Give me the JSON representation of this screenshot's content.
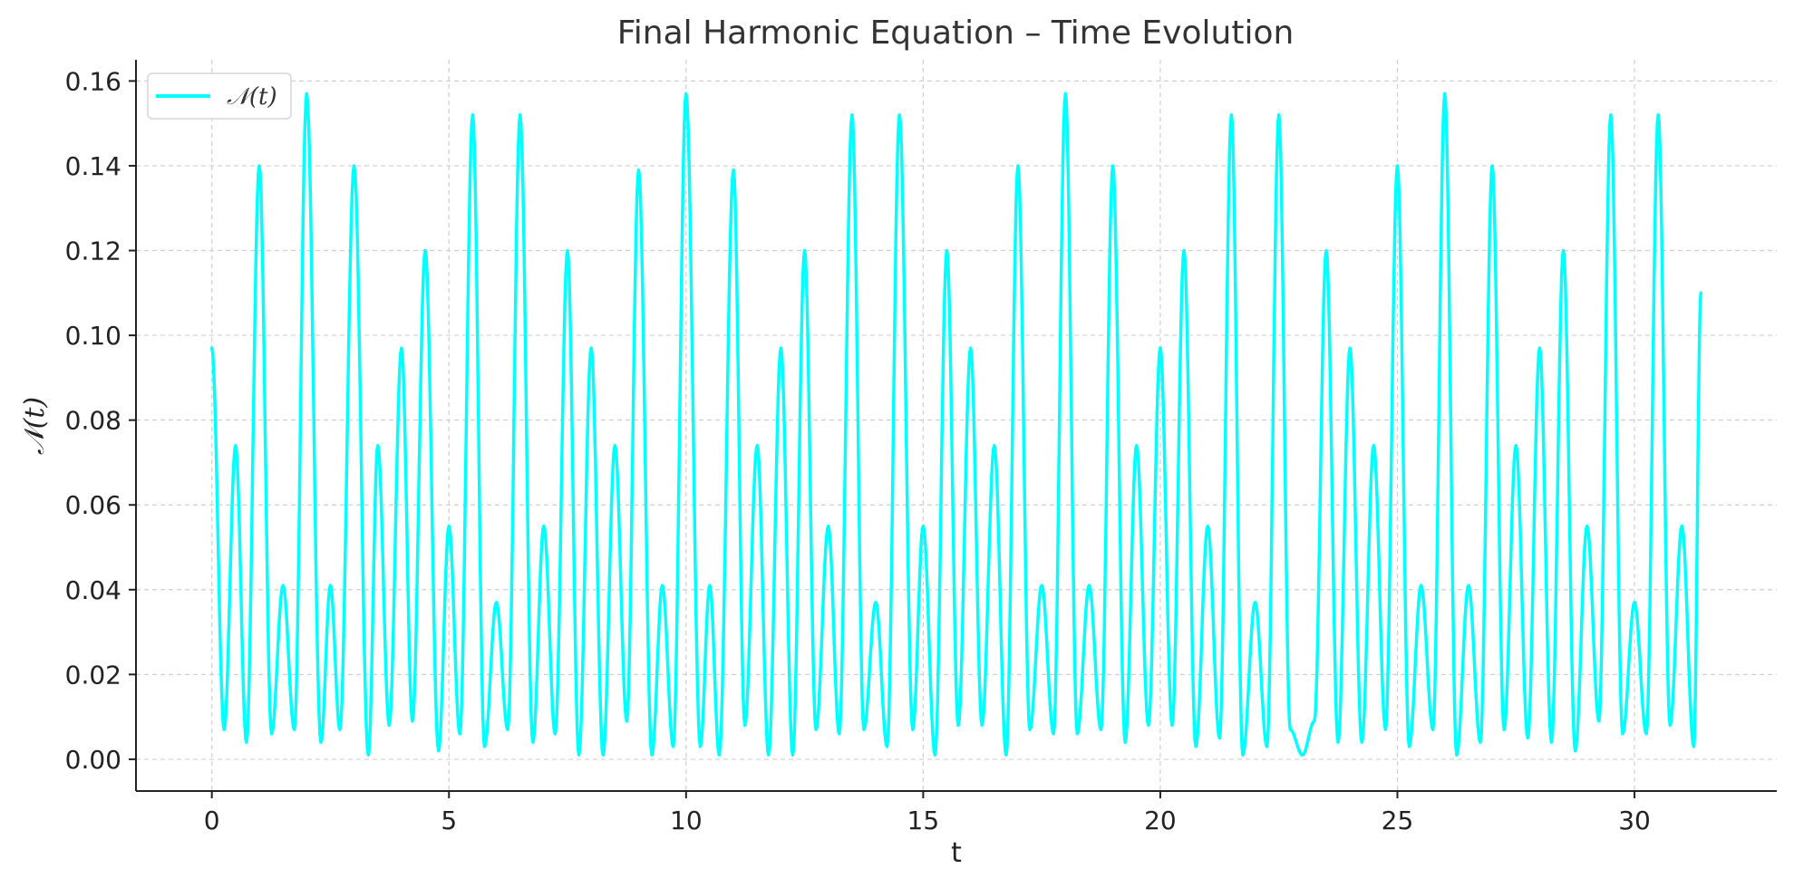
{
  "chart_data": {
    "type": "line",
    "title": "Final Harmonic Equation – Time Evolution",
    "xlabel": "t",
    "ylabel": "𝒩(t)",
    "xlim": [
      -1.6,
      33.0
    ],
    "ylim": [
      -0.0075,
      0.165
    ],
    "x_ticks": [
      0,
      5,
      10,
      15,
      20,
      25,
      30
    ],
    "y_ticks": [
      0.0,
      0.02,
      0.04,
      0.06,
      0.08,
      0.1,
      0.12,
      0.14,
      0.16
    ],
    "x_tick_labels": [
      "0",
      "5",
      "10",
      "15",
      "20",
      "25",
      "30"
    ],
    "y_tick_labels": [
      "0.00",
      "0.02",
      "0.04",
      "0.06",
      "0.08",
      "0.10",
      "0.12",
      "0.14",
      "0.16"
    ],
    "grid": true,
    "legend_position": "top-left",
    "x_range_data": [
      0,
      31.4
    ],
    "series": [
      {
        "name": "𝒩(t)",
        "color": "#00ffff",
        "x": [
          0.0,
          0.26,
          0.5,
          0.73,
          1.0,
          1.26,
          1.5,
          1.74,
          2.0,
          2.3,
          2.5,
          2.7,
          3.0,
          3.3,
          3.5,
          3.74,
          4.0,
          4.23,
          4.5,
          4.78,
          5.0,
          5.23,
          5.5,
          5.75,
          6.0,
          6.24,
          6.5,
          6.77,
          7.0,
          7.24,
          7.5,
          7.74,
          8.0,
          8.25,
          8.5,
          8.75,
          9.0,
          9.28,
          9.5,
          9.73,
          10.0,
          10.3,
          10.5,
          10.7,
          11.0,
          11.24,
          11.5,
          11.74,
          12.0,
          12.25,
          12.5,
          12.74,
          13.0,
          13.23,
          13.5,
          13.75,
          14.0,
          14.24,
          14.5,
          14.78,
          15.0,
          15.25,
          15.5,
          15.74,
          16.0,
          16.24,
          16.5,
          16.75,
          17.0,
          17.25,
          17.5,
          17.75,
          18.0,
          18.25,
          18.5,
          18.75,
          19.0,
          19.26,
          19.5,
          19.75,
          20.0,
          20.25,
          20.5,
          20.75,
          21.0,
          21.25,
          21.5,
          21.74,
          22.0,
          22.25,
          22.5,
          22.74,
          23.0,
          23.25,
          23.5,
          23.75,
          24.0,
          24.25,
          24.5,
          24.75,
          25.0,
          25.25,
          25.5,
          25.75,
          26.0,
          26.25,
          26.5,
          26.75,
          27.0,
          27.25,
          27.5,
          27.75,
          28.0,
          28.25,
          28.5,
          28.75,
          29.0,
          29.25,
          29.5,
          29.75,
          30.0,
          30.25,
          30.5,
          30.75,
          31.0,
          31.25,
          31.4
        ],
        "values": [
          0.097,
          0.007,
          0.074,
          0.004,
          0.14,
          0.006,
          0.041,
          0.007,
          0.157,
          0.004,
          0.041,
          0.007,
          0.14,
          0.001,
          0.074,
          0.008,
          0.097,
          0.009,
          0.12,
          0.002,
          0.055,
          0.006,
          0.152,
          0.003,
          0.037,
          0.007,
          0.152,
          0.004,
          0.055,
          0.006,
          0.12,
          0.001,
          0.097,
          0.001,
          0.074,
          0.009,
          0.139,
          0.001,
          0.041,
          0.003,
          0.157,
          0.003,
          0.041,
          0.001,
          0.139,
          0.008,
          0.074,
          0.001,
          0.097,
          0.001,
          0.12,
          0.007,
          0.055,
          0.006,
          0.152,
          0.007,
          0.037,
          0.003,
          0.152,
          0.007,
          0.055,
          0.001,
          0.12,
          0.008,
          0.097,
          0.008,
          0.074,
          0.001,
          0.14,
          0.007,
          0.041,
          0.006,
          0.157,
          0.006,
          0.041,
          0.007,
          0.14,
          0.004,
          0.074,
          0.008,
          0.097,
          0.008,
          0.12,
          0.003,
          0.055,
          0.005,
          0.152,
          0.001,
          0.037,
          0.003,
          0.152,
          0.007,
          0.001,
          0.009,
          0.12,
          0.004,
          0.097,
          0.004,
          0.074,
          0.007,
          0.14,
          0.003,
          0.041,
          0.007,
          0.157,
          0.001,
          0.041,
          0.004,
          0.14,
          0.007,
          0.074,
          0.005,
          0.097,
          0.004,
          0.12,
          0.002,
          0.055,
          0.009,
          0.152,
          0.006,
          0.037,
          0.006,
          0.152,
          0.008,
          0.055,
          0.003,
          0.11
        ]
      }
    ]
  }
}
